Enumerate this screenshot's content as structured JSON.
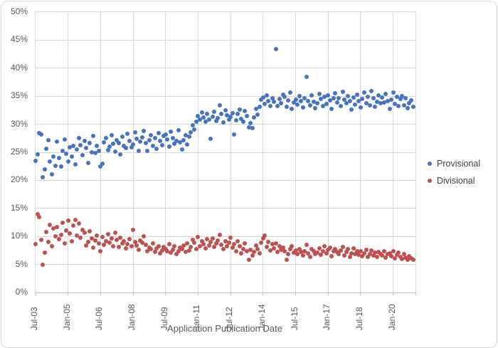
{
  "chart": {
    "xlabel": "Application Publication Date",
    "y_tick_labels": [
      "50%",
      "45%",
      "40%",
      "35%",
      "30%",
      "25%",
      "20%",
      "15%",
      "10%",
      "5%",
      "0%"
    ],
    "x_tick_labels": [
      "Jul-03",
      "Jan-05",
      "Jul-06",
      "Jan-08",
      "Jul-09",
      "Jan-11",
      "Jul-12",
      "Jan-14",
      "Jul-15",
      "Jan-17",
      "Jul-18",
      "Jan-20"
    ],
    "colors": {
      "provisional": "#4472C4",
      "divisional": "#C0504D",
      "gridline": "#D9D9D9",
      "axis": "#BFBFBF",
      "label_text": "#595959",
      "legend_text": "#404040"
    }
  },
  "chart_data": {
    "type": "scatter",
    "title": "",
    "xlabel": "Application Publication Date",
    "ylabel": "",
    "ylim": [
      0,
      50
    ],
    "y_tick_step_percent": 5,
    "x_start_month": "2003-07",
    "x_step": "1 month",
    "x_tick_interval_months": 18,
    "grid": true,
    "legend_position": "right",
    "series": [
      {
        "name": "Provisional",
        "color": "#4472C4",
        "values": [
          23.5,
          24.6,
          28.4,
          28.2,
          20.6,
          22.0,
          25.6,
          27.1,
          23.3,
          21.1,
          24.2,
          22.6,
          26.9,
          24.0,
          22.4,
          25.2,
          27.3,
          24.8,
          23.4,
          25.9,
          24.3,
          26.1,
          22.9,
          25.5,
          27.6,
          26.3,
          24.5,
          27.0,
          25.8,
          23.1,
          26.6,
          25.0,
          27.9,
          24.9,
          26.2,
          25.3,
          22.5,
          23.0,
          26.8,
          27.5,
          25.4,
          26.0,
          28.1,
          26.5,
          25.1,
          27.2,
          26.7,
          24.6,
          27.8,
          26.1,
          25.7,
          28.3,
          27.0,
          25.9,
          26.4,
          28.6,
          27.4,
          25.2,
          26.9,
          27.7,
          28.8,
          26.6,
          25.3,
          27.1,
          28.0,
          26.2,
          27.5,
          25.6,
          28.4,
          27.0,
          26.3,
          27.9,
          28.2,
          27.3,
          26.0,
          28.7,
          27.6,
          26.5,
          27.0,
          28.9,
          26.8,
          25.5,
          27.2,
          28.1,
          26.4,
          27.8,
          28.5,
          29.8,
          29.1,
          30.4,
          31.5,
          30.8,
          32.1,
          31.2,
          30.5,
          31.9,
          30.9,
          27.4,
          31.4,
          32.2,
          30.6,
          31.1,
          33.4,
          31.8,
          30.3,
          32.5,
          31.6,
          30.8,
          31.3,
          32.0,
          28.2,
          30.7,
          31.9,
          32.6,
          31.0,
          30.4,
          32.3,
          31.5,
          29.5,
          30.2,
          29.3,
          31.2,
          32.8,
          31.7,
          33.1,
          34.4,
          34.8,
          33.6,
          35.1,
          34.2,
          33.3,
          34.6,
          34.0,
          43.4,
          33.2,
          34.5,
          33.7,
          35.3,
          34.9,
          33.1,
          34.3,
          35.6,
          32.7,
          33.9,
          34.4,
          33.5,
          35.0,
          34.1,
          33.0,
          34.7,
          38.5,
          34.2,
          33.4,
          35.2,
          34.0,
          32.9,
          33.8,
          35.4,
          34.5,
          33.2,
          34.9,
          33.6,
          35.1,
          34.3,
          32.8,
          34.6,
          35.5,
          33.9,
          34.7,
          33.3,
          35.8,
          34.4,
          33.7,
          35.0,
          34.1,
          32.6,
          34.8,
          33.5,
          35.3,
          34.2,
          33.0,
          34.5,
          35.6,
          33.8,
          34.9,
          33.4,
          35.9,
          34.6,
          33.1,
          34.0,
          35.2,
          33.7,
          34.8,
          33.9,
          35.4,
          34.1,
          32.8,
          34.4,
          35.7,
          33.6,
          34.9,
          33.2,
          34.5,
          35.0,
          33.4,
          34.7,
          32.9,
          33.8,
          34.3,
          33.1
        ]
      },
      {
        "name": "Divisional",
        "color": "#C0504D",
        "values": [
          8.6,
          13.9,
          13.5,
          9.4,
          4.9,
          7.1,
          10.8,
          9.0,
          12.1,
          8.2,
          11.4,
          10.0,
          11.7,
          9.5,
          10.3,
          12.5,
          8.8,
          11.0,
          12.8,
          10.5,
          9.2,
          11.9,
          13.0,
          10.1,
          12.3,
          9.8,
          11.2,
          10.6,
          8.4,
          9.0,
          10.9,
          9.6,
          8.0,
          9.3,
          10.2,
          8.7,
          7.3,
          9.9,
          8.5,
          9.1,
          10.4,
          8.9,
          9.7,
          8.3,
          10.7,
          9.4,
          8.1,
          9.8,
          8.8,
          9.2,
          7.9,
          8.6,
          9.5,
          8.2,
          11.2,
          9.0,
          8.4,
          7.6,
          9.3,
          8.9,
          10.0,
          8.5,
          7.4,
          8.0,
          7.7,
          8.8,
          7.2,
          7.9,
          8.3,
          7.0,
          7.5,
          8.1,
          7.8,
          7.3,
          8.6,
          7.1,
          7.6,
          8.2,
          6.9,
          7.4,
          8.0,
          7.7,
          8.4,
          7.2,
          8.7,
          7.5,
          8.1,
          9.4,
          8.9,
          7.8,
          9.9,
          8.3,
          9.1,
          8.6,
          7.9,
          9.5,
          8.4,
          9.0,
          9.6,
          8.1,
          8.8,
          9.3,
          10.3,
          8.5,
          7.7,
          9.1,
          8.2,
          8.9,
          9.8,
          8.0,
          8.6,
          7.4,
          9.2,
          8.3,
          7.0,
          7.8,
          8.7,
          7.3,
          5.9,
          7.6,
          6.6,
          7.2,
          8.4,
          7.7,
          7.0,
          8.9,
          9.7,
          10.2,
          8.1,
          9.0,
          7.5,
          8.6,
          7.9,
          8.8,
          7.2,
          8.3,
          7.6,
          8.0,
          7.4,
          5.9,
          6.8,
          7.7,
          8.2,
          7.1,
          7.5,
          6.9,
          7.8,
          7.2,
          6.6,
          7.4,
          8.5,
          7.0,
          6.4,
          7.7,
          7.3,
          6.8,
          7.1,
          7.9,
          6.7,
          7.4,
          8.2,
          7.0,
          7.6,
          8.0,
          6.5,
          7.3,
          7.8,
          7.2,
          6.9,
          7.5,
          8.1,
          6.6,
          7.2,
          7.7,
          6.4,
          7.0,
          7.9,
          6.8,
          7.4,
          6.7,
          7.3,
          6.5,
          7.0,
          7.6,
          6.3,
          6.9,
          7.5,
          6.6,
          7.1,
          6.4,
          7.2,
          6.8,
          6.6,
          7.4,
          6.2,
          6.9,
          7.0,
          6.5,
          7.3,
          6.1,
          6.7,
          7.1,
          6.4,
          6.0,
          6.8,
          6.2,
          5.9,
          6.5,
          6.1,
          5.8
        ]
      }
    ]
  }
}
